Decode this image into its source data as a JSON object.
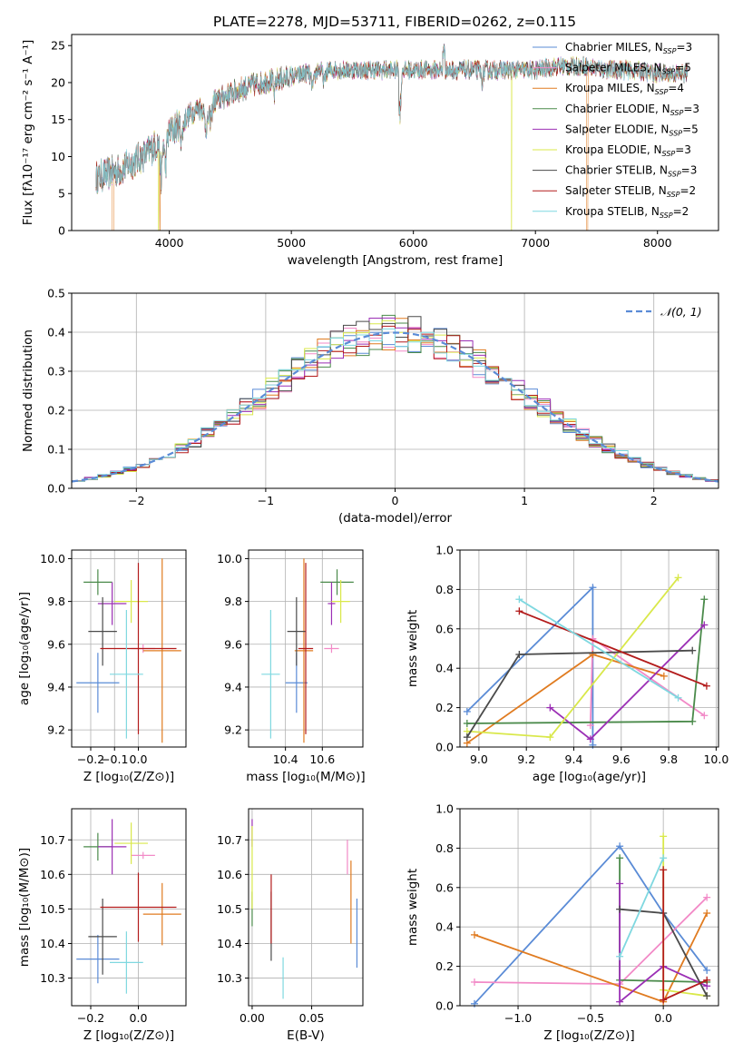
{
  "page_title": "PLATE=2278, MJD=53711, FIBERID=0262, z=0.115",
  "colors": {
    "Chabrier MILES": "#5a8bd6",
    "Salpeter MILES": "#f28ac7",
    "Kroupa MILES": "#e07b20",
    "Chabrier ELODIE": "#4a8a4a",
    "Salpeter ELODIE": "#9b2fb5",
    "Kroupa ELODIE": "#d9e84a",
    "Chabrier STELIB": "#4a4a4a",
    "Salpeter STELIB": "#b31b1b",
    "Kroupa STELIB": "#7fd8e0",
    "normal_curve": "#5a8bd6"
  },
  "chart_data": [
    {
      "id": "spectrum",
      "type": "line",
      "title": "PLATE=2278, MJD=53711, FIBERID=0262, z=0.115",
      "xlabel": "wavelength [Angstrom, rest frame]",
      "ylabel": "Flux [fλ10⁻¹⁷ erg cm⁻² s⁻¹ A⁻¹]",
      "xlim": [
        3200,
        8500
      ],
      "ylim": [
        0,
        26.5
      ],
      "xticks": [
        4000,
        5000,
        6000,
        7000,
        8000
      ],
      "yticks": [
        0,
        5,
        10,
        15,
        20,
        25
      ],
      "legend_position": "top-right",
      "spectrum_range": [
        3400,
        8250
      ],
      "continuum": {
        "x": [
          3400,
          3600,
          3800,
          4000,
          4200,
          4400,
          4600,
          4800,
          5000,
          5200,
          5400,
          5600,
          5800,
          6000,
          6200,
          6400,
          6600,
          6800,
          7000,
          7200,
          7400,
          7600,
          7800,
          8000,
          8250
        ],
        "y": [
          7.5,
          8.5,
          10.5,
          13.5,
          16.5,
          18,
          19.5,
          20.5,
          21,
          22,
          22,
          22,
          22,
          22,
          22,
          22,
          22,
          22,
          22,
          22.5,
          22.5,
          22,
          22,
          21.5,
          21.5
        ]
      },
      "series": [
        {
          "name": "Chabrier MILES, N_SSP=3",
          "label": "Chabrier MILES, N",
          "sub": "SSP",
          "suffix": "=3"
        },
        {
          "name": "Salpeter MILES, N_SSP=5",
          "label": "Salpeter MILES, N",
          "sub": "SSP",
          "suffix": "=5"
        },
        {
          "name": "Kroupa MILES, N_SSP=4",
          "label": "Kroupa MILES, N",
          "sub": "SSP",
          "suffix": "=4"
        },
        {
          "name": "Chabrier ELODIE, N_SSP=3",
          "label": "Chabrier ELODIE, N",
          "sub": "SSP",
          "suffix": "=3"
        },
        {
          "name": "Salpeter ELODIE, N_SSP=5",
          "label": "Salpeter ELODIE, N",
          "sub": "SSP",
          "suffix": "=5"
        },
        {
          "name": "Kroupa ELODIE, N_SSP=3",
          "label": "Kroupa ELODIE, N",
          "sub": "SSP",
          "suffix": "=3"
        },
        {
          "name": "Chabrier STELIB, N_SSP=3",
          "label": "Chabrier STELIB, N",
          "sub": "SSP",
          "suffix": "=3"
        },
        {
          "name": "Salpeter STELIB, N_SSP=2",
          "label": "Salpeter STELIB, N",
          "sub": "SSP",
          "suffix": "=2"
        },
        {
          "name": "Kroupa STELIB, N_SSP=2",
          "label": "Kroupa STELIB, N",
          "sub": "SSP",
          "suffix": "=2"
        }
      ],
      "dropouts": [
        {
          "series": "Kroupa MILES",
          "x": 3530,
          "x_end": 3545
        },
        {
          "series": "Kroupa ELODIE",
          "x": 3910,
          "x_end": 3915
        },
        {
          "series": "Kroupa MILES",
          "x": 3920,
          "x_end": 3925
        },
        {
          "series": "Kroupa ELODIE",
          "x": 6800,
          "x_end": 6805
        },
        {
          "series": "Kroupa MILES",
          "x": 7420,
          "x_end": 7430
        }
      ]
    },
    {
      "id": "residual-histogram",
      "type": "histogram",
      "xlabel": "(data-model)/error",
      "ylabel": "Normed distribution",
      "xlim": [
        -2.5,
        2.5
      ],
      "ylim": [
        0,
        0.5
      ],
      "xticks": [
        -2,
        -1,
        0,
        1,
        2
      ],
      "yticks": [
        0.0,
        0.1,
        0.2,
        0.3,
        0.4,
        0.5
      ],
      "bin_width": 0.1,
      "legend_position": "top-right",
      "legend": "𝒩(0, 1)",
      "normal_curve": {
        "mean": 0,
        "sigma": 1
      }
    },
    {
      "id": "age-vs-Z",
      "type": "errorbar",
      "xlabel": "Z [log₁₀(Z/Z⊙)]",
      "ylabel": "age  [log₁₀(age/yr)]",
      "xlim": [
        -0.28,
        0.2
      ],
      "ylim": [
        9.12,
        10.04
      ],
      "xticks": [
        -0.2,
        -0.1,
        0.0
      ],
      "yticks": [
        9.2,
        9.4,
        9.6,
        9.8,
        10.0
      ],
      "points": [
        {
          "series": "Chabrier MILES",
          "x": -0.17,
          "xerr": 0.09,
          "y": 9.42,
          "yerr": 0.14
        },
        {
          "series": "Salpeter MILES",
          "x": 0.02,
          "xerr": 0.05,
          "y": 9.58,
          "yerr": 0.02
        },
        {
          "series": "Kroupa MILES",
          "x": 0.1,
          "xerr": 0.08,
          "y": 9.57,
          "yerr": 0.43
        },
        {
          "series": "Chabrier ELODIE",
          "x": -0.17,
          "xerr": 0.06,
          "y": 9.89,
          "yerr": 0.06
        },
        {
          "series": "Salpeter ELODIE",
          "x": -0.11,
          "xerr": 0.06,
          "y": 9.79,
          "yerr": 0.1
        },
        {
          "series": "Kroupa ELODIE",
          "x": -0.03,
          "xerr": 0.07,
          "y": 9.8,
          "yerr": 0.1
        },
        {
          "series": "Chabrier STELIB",
          "x": -0.15,
          "xerr": 0.06,
          "y": 9.66,
          "yerr": 0.16
        },
        {
          "series": "Salpeter STELIB",
          "x": 0.0,
          "xerr": 0.16,
          "y": 9.58,
          "yerr": 0.4
        },
        {
          "series": "Kroupa STELIB",
          "x": -0.05,
          "xerr": 0.07,
          "y": 9.46,
          "yerr": 0.3
        }
      ]
    },
    {
      "id": "age-vs-mass",
      "type": "errorbar",
      "xlabel": "mass [log₁₀(M/M⊙)]",
      "ylabel": "",
      "xlim": [
        10.2,
        10.82
      ],
      "ylim": [
        9.12,
        10.04
      ],
      "xticks": [
        10.4,
        10.6
      ],
      "yticks": [
        9.2,
        9.4,
        9.6,
        9.8,
        10.0
      ],
      "points": [
        {
          "series": "Chabrier MILES",
          "x": 10.46,
          "xerr": 0.06,
          "y": 9.42,
          "yerr": 0.14
        },
        {
          "series": "Salpeter MILES",
          "x": 10.65,
          "xerr": 0.04,
          "y": 9.58,
          "yerr": 0.02
        },
        {
          "series": "Kroupa MILES",
          "x": 10.5,
          "xerr": 0.05,
          "y": 9.57,
          "yerr": 0.43
        },
        {
          "series": "Chabrier ELODIE",
          "x": 10.68,
          "xerr": 0.09,
          "y": 9.89,
          "yerr": 0.06
        },
        {
          "series": "Salpeter ELODIE",
          "x": 10.65,
          "xerr": 0.02,
          "y": 9.79,
          "yerr": 0.1
        },
        {
          "series": "Kroupa ELODIE",
          "x": 10.7,
          "xerr": 0.05,
          "y": 9.8,
          "yerr": 0.1
        },
        {
          "series": "Chabrier STELIB",
          "x": 10.46,
          "xerr": 0.05,
          "y": 9.66,
          "yerr": 0.16
        },
        {
          "series": "Salpeter STELIB",
          "x": 10.51,
          "xerr": 0.04,
          "y": 9.58,
          "yerr": 0.4
        },
        {
          "series": "Kroupa STELIB",
          "x": 10.32,
          "xerr": 0.05,
          "y": 9.46,
          "yerr": 0.3
        }
      ]
    },
    {
      "id": "mass-weight-vs-age",
      "type": "line",
      "xlabel": "age  [log₁₀(age/yr)]",
      "ylabel": "mass weight",
      "xlim": [
        8.92,
        10.01
      ],
      "ylim": [
        0,
        1.0
      ],
      "xticks": [
        9.0,
        9.2,
        9.4,
        9.6,
        9.8,
        10.0
      ],
      "yticks": [
        0.0,
        0.2,
        0.4,
        0.6,
        0.8,
        1.0
      ],
      "series": [
        {
          "name": "Chabrier MILES",
          "x": [
            8.95,
            9.48,
            9.48
          ],
          "y": [
            0.18,
            0.81,
            0.01
          ]
        },
        {
          "name": "Salpeter MILES",
          "x": [
            9.47,
            9.48,
            9.95
          ],
          "y": [
            0.11,
            0.55,
            0.16
          ]
        },
        {
          "name": "Kroupa MILES",
          "x": [
            8.95,
            9.48,
            9.78
          ],
          "y": [
            0.02,
            0.47,
            0.36
          ]
        },
        {
          "name": "Chabrier ELODIE",
          "x": [
            8.95,
            9.9,
            9.95
          ],
          "y": [
            0.12,
            0.13,
            0.75
          ]
        },
        {
          "name": "Salpeter ELODIE",
          "x": [
            9.3,
            9.47,
            9.95
          ],
          "y": [
            0.2,
            0.04,
            0.62
          ]
        },
        {
          "name": "Kroupa ELODIE",
          "x": [
            8.95,
            9.3,
            9.84
          ],
          "y": [
            0.08,
            0.05,
            0.86
          ]
        },
        {
          "name": "Chabrier STELIB",
          "x": [
            8.95,
            9.17,
            9.9
          ],
          "y": [
            0.05,
            0.47,
            0.49
          ]
        },
        {
          "name": "Salpeter STELIB",
          "x": [
            9.17,
            9.96
          ],
          "y": [
            0.69,
            0.31
          ]
        },
        {
          "name": "Kroupa STELIB",
          "x": [
            9.17,
            9.84
          ],
          "y": [
            0.75,
            0.25
          ]
        }
      ]
    },
    {
      "id": "mass-vs-Z",
      "type": "errorbar",
      "xlabel": "Z [log₁₀(Z/Z⊙)]",
      "ylabel": "mass [log₁₀(M/M⊙)]",
      "xlim": [
        -0.28,
        0.2
      ],
      "ylim": [
        10.22,
        10.79
      ],
      "xticks": [
        -0.2,
        0.0
      ],
      "yticks": [
        10.3,
        10.4,
        10.5,
        10.6,
        10.7
      ],
      "points": [
        {
          "series": "Chabrier MILES",
          "x": -0.17,
          "xerr": 0.09,
          "y": 10.355,
          "yerr": 0.07
        },
        {
          "series": "Salpeter MILES",
          "x": 0.02,
          "xerr": 0.05,
          "y": 10.655,
          "yerr": 0.01
        },
        {
          "series": "Kroupa MILES",
          "x": 0.1,
          "xerr": 0.08,
          "y": 10.485,
          "yerr": 0.09
        },
        {
          "series": "Chabrier ELODIE",
          "x": -0.17,
          "xerr": 0.06,
          "y": 10.68,
          "yerr": 0.04
        },
        {
          "series": "Salpeter ELODIE",
          "x": -0.11,
          "xerr": 0.06,
          "y": 10.68,
          "yerr": 0.08
        },
        {
          "series": "Kroupa ELODIE",
          "x": -0.03,
          "xerr": 0.07,
          "y": 10.69,
          "yerr": 0.06
        },
        {
          "series": "Chabrier STELIB",
          "x": -0.15,
          "xerr": 0.06,
          "y": 10.42,
          "yerr": 0.11
        },
        {
          "series": "Salpeter STELIB",
          "x": 0.0,
          "xerr": 0.16,
          "y": 10.505,
          "yerr": 0.1
        },
        {
          "series": "Kroupa STELIB",
          "x": -0.05,
          "xerr": 0.07,
          "y": 10.345,
          "yerr": 0.09
        }
      ]
    },
    {
      "id": "mass-vs-EBV",
      "type": "errorbar",
      "xlabel": "E(B-V)",
      "ylabel": "",
      "xlim": [
        -0.003,
        0.093
      ],
      "ylim": [
        10.22,
        10.79
      ],
      "xticks": [
        0.0,
        0.05
      ],
      "yticks": [
        10.3,
        10.4,
        10.5,
        10.6,
        10.7
      ],
      "points": [
        {
          "series": "Chabrier MILES",
          "x": 0.088,
          "xerr": 0,
          "y": 10.43,
          "yerr": 0.1
        },
        {
          "series": "Salpeter MILES",
          "x": 0.08,
          "xerr": 0,
          "y": 10.65,
          "yerr": 0.05
        },
        {
          "series": "Kroupa MILES",
          "x": 0.083,
          "xerr": 0,
          "y": 10.52,
          "yerr": 0.12
        },
        {
          "series": "Chabrier ELODIE",
          "x": 0.0,
          "xerr": 0,
          "y": 10.5,
          "yerr": 0.05
        },
        {
          "series": "Salpeter ELODIE",
          "x": 0.0,
          "xerr": 0,
          "y": 10.72,
          "yerr": 0.04
        },
        {
          "series": "Kroupa ELODIE",
          "x": 0.0,
          "xerr": 0,
          "y": 10.62,
          "yerr": 0.12
        },
        {
          "series": "Chabrier STELIB",
          "x": 0.016,
          "xerr": 0,
          "y": 10.45,
          "yerr": 0.1
        },
        {
          "series": "Salpeter STELIB",
          "x": 0.016,
          "xerr": 0,
          "y": 10.5,
          "yerr": 0.1
        },
        {
          "series": "Kroupa STELIB",
          "x": 0.026,
          "xerr": 0,
          "y": 10.3,
          "yerr": 0.06
        }
      ]
    },
    {
      "id": "mass-weight-vs-Z",
      "type": "line",
      "xlabel": "Z [log₁₀(Z/Z⊙)]",
      "ylabel": "mass weight",
      "xlim": [
        -1.4,
        0.38
      ],
      "ylim": [
        0,
        1.0
      ],
      "xticks": [
        -1.0,
        -0.5,
        0.0
      ],
      "yticks": [
        0.0,
        0.2,
        0.4,
        0.6,
        0.8,
        1.0
      ],
      "series": [
        {
          "name": "Chabrier MILES",
          "x": [
            -1.3,
            -0.3,
            0.0,
            0.3
          ],
          "y": [
            0.01,
            0.81,
            0.47,
            0.18
          ]
        },
        {
          "name": "Salpeter MILES",
          "x": [
            -1.3,
            -0.3,
            0.3
          ],
          "y": [
            0.12,
            0.11,
            0.55
          ]
        },
        {
          "name": "Kroupa MILES",
          "x": [
            -1.3,
            0.0,
            0.3
          ],
          "y": [
            0.36,
            0.02,
            0.47
          ]
        },
        {
          "name": "Chabrier ELODIE",
          "x": [
            -0.3,
            -0.3,
            0.3
          ],
          "y": [
            0.75,
            0.13,
            0.12
          ]
        },
        {
          "name": "Salpeter ELODIE",
          "x": [
            -0.3,
            -0.3,
            0.0,
            0.3
          ],
          "y": [
            0.62,
            0.02,
            0.2,
            0.1
          ]
        },
        {
          "name": "Kroupa ELODIE",
          "x": [
            0.0,
            0.0,
            0.3
          ],
          "y": [
            0.86,
            0.08,
            0.05
          ]
        },
        {
          "name": "Chabrier STELIB",
          "x": [
            -0.3,
            0.0,
            0.3
          ],
          "y": [
            0.49,
            0.47,
            0.05
          ]
        },
        {
          "name": "Salpeter STELIB",
          "x": [
            0.0,
            0.0,
            0.3
          ],
          "y": [
            0.69,
            0.03,
            0.13
          ]
        },
        {
          "name": "Kroupa STELIB",
          "x": [
            -0.3,
            0.0
          ],
          "y": [
            0.25,
            0.75
          ]
        }
      ]
    }
  ]
}
